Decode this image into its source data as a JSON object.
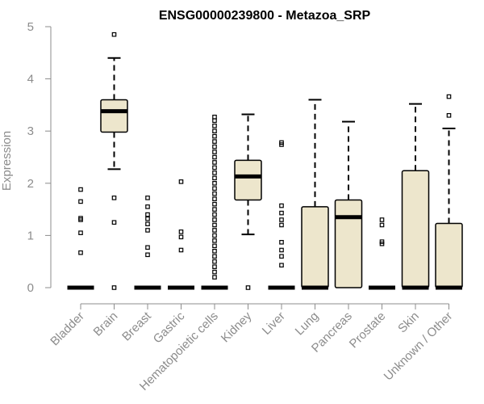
{
  "chart_data": {
    "type": "boxplot",
    "title": "ENSG00000239800 - Metazoa_SRP",
    "xlabel": "",
    "ylabel": "Expression",
    "ylim": [
      0,
      5
    ],
    "yticks": [
      0,
      1,
      2,
      3,
      4,
      5
    ],
    "box_fill": "#ede6cc",
    "categories": [
      "Bladder",
      "Brain",
      "Breast",
      "Gastric",
      "Hematopoietic cells",
      "Kidney",
      "Liver",
      "Lung",
      "Pancreas",
      "Prostate",
      "Skin",
      "Unknown / Other"
    ],
    "boxes": [
      {
        "name": "Bladder",
        "min": 0,
        "q1": 0,
        "median": 0,
        "q3": 0,
        "max": 0,
        "outliers": [
          0.67,
          1.05,
          1.3,
          1.33,
          1.65,
          1.88
        ]
      },
      {
        "name": "Brain",
        "min": 2.27,
        "q1": 2.98,
        "median": 3.38,
        "q3": 3.6,
        "max": 4.4,
        "outliers": [
          0,
          1.25,
          1.72,
          4.85
        ]
      },
      {
        "name": "Breast",
        "min": 0,
        "q1": 0,
        "median": 0,
        "q3": 0,
        "max": 0,
        "outliers": [
          0.63,
          0.77,
          1.1,
          1.22,
          1.32,
          1.4,
          1.55,
          1.72
        ]
      },
      {
        "name": "Gastric",
        "min": 0,
        "q1": 0,
        "median": 0,
        "q3": 0,
        "max": 0,
        "outliers": [
          0.72,
          0.97,
          1.07,
          2.03
        ]
      },
      {
        "name": "Hematopoietic cells",
        "min": 0,
        "q1": 0,
        "median": 0,
        "q3": 0,
        "max": 0,
        "outliers": [
          0.2,
          0.3,
          0.4,
          0.5,
          0.6,
          0.7,
          0.8,
          0.9,
          1.0,
          1.1,
          1.2,
          1.3,
          1.4,
          1.5,
          1.6,
          1.7,
          1.8,
          1.9,
          2.0,
          2.1,
          2.2,
          2.3,
          2.4,
          2.5,
          2.6,
          2.7,
          2.8,
          2.9,
          3.0,
          3.1,
          3.2,
          3.27
        ]
      },
      {
        "name": "Kidney",
        "min": 1.02,
        "q1": 1.68,
        "median": 2.13,
        "q3": 2.44,
        "max": 3.32,
        "outliers": [
          0
        ]
      },
      {
        "name": "Liver",
        "min": 0,
        "q1": 0,
        "median": 0,
        "q3": 0,
        "max": 0,
        "outliers": [
          0.43,
          0.6,
          0.72,
          0.87,
          1.2,
          1.3,
          1.43,
          1.57,
          2.74,
          2.78
        ]
      },
      {
        "name": "Lung",
        "min": 0,
        "q1": 0,
        "median": 0,
        "q3": 1.55,
        "max": 3.6,
        "outliers": []
      },
      {
        "name": "Pancreas",
        "min": 0,
        "q1": 0,
        "median": 1.35,
        "q3": 1.68,
        "max": 3.18,
        "outliers": []
      },
      {
        "name": "Prostate",
        "min": 0,
        "q1": 0,
        "median": 0,
        "q3": 0,
        "max": 0,
        "outliers": [
          0.84,
          0.88,
          1.2,
          1.3
        ]
      },
      {
        "name": "Skin",
        "min": 0,
        "q1": 0,
        "median": 0,
        "q3": 2.24,
        "max": 3.52,
        "outliers": []
      },
      {
        "name": "Unknown / Other",
        "min": 0,
        "q1": 0,
        "median": 0,
        "q3": 1.23,
        "max": 3.05,
        "outliers": [
          3.3,
          3.66
        ]
      }
    ]
  }
}
